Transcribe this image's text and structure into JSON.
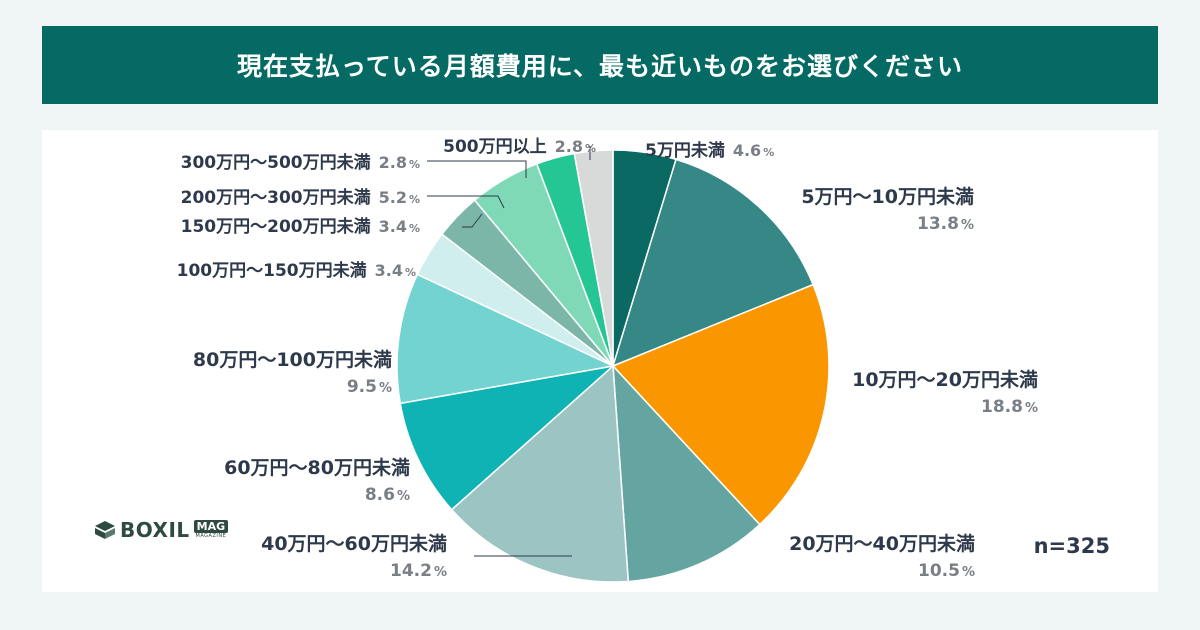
{
  "title": "現在支払っている月額費用に、最も近いものをお選びください",
  "sample": "n=325",
  "brand": {
    "name": "BOXIL",
    "badge": "MAG",
    "sub": "MAGAZINE"
  },
  "chart_data": {
    "type": "pie",
    "title": "現在支払っている月額費用に、最も近いものをお選びください",
    "start": "12 o'clock",
    "direction": "clockwise",
    "unit": "%",
    "slices": [
      {
        "label": "5万円未満",
        "value": 4.6,
        "display": "4.6",
        "color": "#0a6a63"
      },
      {
        "label": "5万円〜10万円未満",
        "value": 13.8,
        "display": "13.8",
        "color": "#358886"
      },
      {
        "label": "10万円〜20万円未満",
        "value": 18.8,
        "display": "18.8",
        "color": "#fa9700"
      },
      {
        "label": "20万円〜40万円未満",
        "value": 10.5,
        "display": "10.5",
        "color": "#64a5a1"
      },
      {
        "label": "40万円〜60万円未満",
        "value": 14.2,
        "display": "14.2",
        "color": "#9cc4c3"
      },
      {
        "label": "60万円〜80万円未満",
        "value": 8.6,
        "display": "8.6",
        "color": "#10b3b4"
      },
      {
        "label": "80万円〜100万円未満",
        "value": 9.5,
        "display": "9.5",
        "color": "#72d3d0"
      },
      {
        "label": "100万円〜150万円未満",
        "value": 3.4,
        "display": "3.4",
        "color": "#d0eeed"
      },
      {
        "label": "150万円〜200万円未満",
        "value": 3.4,
        "display": "3.4",
        "color": "#7bb6a8"
      },
      {
        "label": "200万円〜300万円未満",
        "value": 5.2,
        "display": "5.2",
        "color": "#7fd9b6"
      },
      {
        "label": "300万円〜500万円未満",
        "value": 2.8,
        "display": "2.8",
        "color": "#24c793"
      },
      {
        "label": "500万円以上",
        "value": 2.8,
        "display": "2.8",
        "color": "#d8dada"
      }
    ]
  }
}
